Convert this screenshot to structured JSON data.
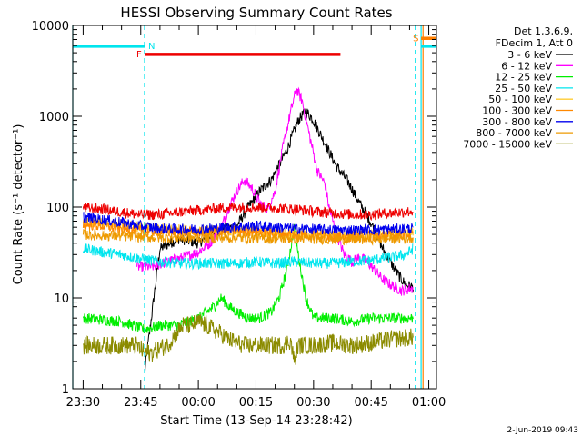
{
  "chart_data": {
    "type": "line",
    "title": "HESSI Observing Summary Count Rates",
    "ylabel": "Count Rate (s⁻¹ detector⁻¹)",
    "xlabel": "Start Time (13-Sep-14 23:28:42)",
    "footer": "2-Jun-2019 09:43",
    "y_scale": "log",
    "ylim": [
      1,
      10000
    ],
    "xlim_minutes": [
      -2.7,
      92
    ],
    "y_ticks": [
      1,
      10,
      100,
      1000,
      10000
    ],
    "y_tick_labels": [
      "1",
      "10",
      "100",
      "1000",
      "10000"
    ],
    "x_ticks_minutes": [
      0,
      15,
      30,
      45,
      60,
      75,
      90
    ],
    "x_tick_labels": [
      "23:30",
      "23:45",
      "00:00",
      "00:15",
      "00:30",
      "00:45",
      "01:00"
    ],
    "legend_header": [
      "Det 1,3,6,9,",
      "FDecim 1, Att 0"
    ],
    "legend_position": "right",
    "series": [
      {
        "name": "3 - 6 keV",
        "color": "#000000",
        "points": [
          [
            16,
            1.5
          ],
          [
            20,
            35
          ],
          [
            25,
            45
          ],
          [
            30,
            40
          ],
          [
            35,
            55
          ],
          [
            40,
            62
          ],
          [
            43,
            100
          ],
          [
            46,
            150
          ],
          [
            49,
            200
          ],
          [
            53,
            420
          ],
          [
            56,
            900
          ],
          [
            58,
            1150
          ],
          [
            60,
            900
          ],
          [
            63,
            500
          ],
          [
            66,
            280
          ],
          [
            69,
            190
          ],
          [
            72,
            110
          ],
          [
            74,
            80
          ],
          [
            76,
            55
          ],
          [
            78,
            35
          ],
          [
            80,
            25
          ],
          [
            82,
            18
          ],
          [
            84,
            14
          ],
          [
            86,
            13
          ]
        ]
      },
      {
        "name": "6 - 12 keV",
        "color": "#ff00ff",
        "points": [
          [
            14,
            22
          ],
          [
            18,
            22
          ],
          [
            22,
            25
          ],
          [
            26,
            28
          ],
          [
            30,
            32
          ],
          [
            33,
            40
          ],
          [
            36,
            60
          ],
          [
            38,
            100
          ],
          [
            40,
            150
          ],
          [
            42,
            200
          ],
          [
            44,
            160
          ],
          [
            46,
            110
          ],
          [
            48,
            95
          ],
          [
            50,
            150
          ],
          [
            52,
            450
          ],
          [
            54,
            1100
          ],
          [
            55.5,
            2000
          ],
          [
            57,
            1500
          ],
          [
            59,
            600
          ],
          [
            61,
            250
          ],
          [
            63,
            180
          ],
          [
            64,
            100
          ],
          [
            66,
            50
          ],
          [
            68,
            30
          ],
          [
            70,
            25
          ],
          [
            72,
            28
          ],
          [
            74,
            25
          ],
          [
            76,
            20
          ],
          [
            78,
            16
          ],
          [
            80,
            14
          ],
          [
            83,
            12
          ],
          [
            86,
            13
          ]
        ]
      },
      {
        "name": "12 - 25 keV",
        "color": "#00ee00",
        "points": [
          [
            0,
            6
          ],
          [
            10,
            5.5
          ],
          [
            16,
            4.5
          ],
          [
            20,
            5
          ],
          [
            25,
            5
          ],
          [
            30,
            6
          ],
          [
            34,
            8
          ],
          [
            36,
            10
          ],
          [
            38,
            8
          ],
          [
            40,
            7
          ],
          [
            43,
            6
          ],
          [
            46,
            6
          ],
          [
            49,
            7
          ],
          [
            51,
            10
          ],
          [
            53,
            20
          ],
          [
            55,
            60
          ],
          [
            56,
            30
          ],
          [
            58,
            10
          ],
          [
            60,
            6
          ],
          [
            65,
            6
          ],
          [
            70,
            5.5
          ],
          [
            75,
            6
          ],
          [
            80,
            6
          ],
          [
            86,
            6
          ]
        ]
      },
      {
        "name": "25 - 50 keV",
        "color": "#00e5ee",
        "points": [
          [
            0,
            35
          ],
          [
            5,
            32
          ],
          [
            10,
            30
          ],
          [
            15,
            27
          ],
          [
            20,
            25
          ],
          [
            25,
            24
          ],
          [
            30,
            24
          ],
          [
            35,
            24
          ],
          [
            40,
            24
          ],
          [
            45,
            25
          ],
          [
            50,
            24
          ],
          [
            55,
            25
          ],
          [
            60,
            24
          ],
          [
            65,
            24
          ],
          [
            70,
            25
          ],
          [
            75,
            26
          ],
          [
            80,
            28
          ],
          [
            84,
            30
          ],
          [
            86,
            35
          ]
        ]
      },
      {
        "name": "50 - 100 keV",
        "color": "#ffcc33",
        "points": [
          [
            0,
            70
          ],
          [
            10,
            63
          ],
          [
            20,
            58
          ],
          [
            30,
            55
          ],
          [
            40,
            55
          ],
          [
            50,
            52
          ],
          [
            60,
            50
          ],
          [
            70,
            49
          ],
          [
            80,
            50
          ],
          [
            86,
            52
          ]
        ]
      },
      {
        "name": "100 - 300 keV",
        "color": "#ff8800",
        "points": [
          [
            0,
            65
          ],
          [
            5,
            62
          ],
          [
            10,
            58
          ],
          [
            15,
            55
          ],
          [
            20,
            54
          ],
          [
            25,
            53
          ],
          [
            30,
            53
          ],
          [
            35,
            54
          ],
          [
            40,
            55
          ],
          [
            45,
            54
          ],
          [
            50,
            52
          ],
          [
            55,
            50
          ],
          [
            60,
            49
          ],
          [
            65,
            48
          ],
          [
            70,
            47
          ],
          [
            75,
            48
          ],
          [
            80,
            49
          ],
          [
            86,
            50
          ]
        ]
      },
      {
        "name": "300 - 800 keV",
        "color": "#0000ee",
        "points": [
          [
            0,
            78
          ],
          [
            5,
            73
          ],
          [
            10,
            68
          ],
          [
            15,
            62
          ],
          [
            20,
            58
          ],
          [
            25,
            57
          ],
          [
            30,
            57
          ],
          [
            35,
            59
          ],
          [
            40,
            61
          ],
          [
            45,
            62
          ],
          [
            50,
            60
          ],
          [
            55,
            58
          ],
          [
            60,
            57
          ],
          [
            65,
            56
          ],
          [
            70,
            56
          ],
          [
            75,
            56
          ],
          [
            80,
            57
          ],
          [
            86,
            58
          ]
        ]
      },
      {
        "name": "800 - 7000 keV",
        "color": "#ee9a00",
        "points": [
          [
            0,
            50
          ],
          [
            10,
            48
          ],
          [
            20,
            46
          ],
          [
            30,
            46
          ],
          [
            40,
            46
          ],
          [
            50,
            45
          ],
          [
            60,
            45
          ],
          [
            70,
            44
          ],
          [
            80,
            45
          ],
          [
            86,
            46
          ]
        ]
      },
      {
        "name": "7000 - 15000 keV",
        "color": "#8b8b00",
        "points": [
          [
            0,
            3
          ],
          [
            5,
            3
          ],
          [
            10,
            3
          ],
          [
            14,
            3
          ],
          [
            16,
            2.5
          ],
          [
            18,
            2.5
          ],
          [
            20,
            2.8
          ],
          [
            22,
            3
          ],
          [
            24,
            4
          ],
          [
            26,
            5
          ],
          [
            28,
            5
          ],
          [
            30,
            5.5
          ],
          [
            32,
            5
          ],
          [
            34,
            4.5
          ],
          [
            36,
            4
          ],
          [
            38,
            3.5
          ],
          [
            40,
            3.2
          ],
          [
            42,
            3
          ],
          [
            44,
            3
          ],
          [
            46,
            3
          ],
          [
            50,
            3
          ],
          [
            52,
            3
          ],
          [
            54,
            3.4
          ],
          [
            55,
            2
          ],
          [
            56,
            3
          ],
          [
            60,
            3
          ],
          [
            65,
            3.2
          ],
          [
            70,
            3
          ],
          [
            75,
            3.2
          ],
          [
            80,
            3.5
          ],
          [
            86,
            3.7
          ]
        ]
      },
      {
        "name": "",
        "color": "#ee0000",
        "points": [
          [
            0,
            98
          ],
          [
            5,
            95
          ],
          [
            10,
            88
          ],
          [
            15,
            82
          ],
          [
            20,
            83
          ],
          [
            25,
            88
          ],
          [
            30,
            92
          ],
          [
            35,
            97
          ],
          [
            40,
            100
          ],
          [
            45,
            100
          ],
          [
            50,
            98
          ],
          [
            55,
            95
          ],
          [
            60,
            90
          ],
          [
            65,
            86
          ],
          [
            70,
            83
          ],
          [
            75,
            83
          ],
          [
            80,
            86
          ],
          [
            86,
            90
          ]
        ]
      }
    ],
    "annotations": [
      {
        "label": "N",
        "color": "#00e5ee",
        "kind": "bar_end",
        "x_start": -2.7,
        "x_end": 16,
        "y": 5900
      },
      {
        "label": "F",
        "color": "#ee0000",
        "kind": "bar_start",
        "x_start": 16,
        "x_end": 67,
        "y": 4800
      },
      {
        "label": "S",
        "color": "#ff7f00",
        "kind": "bar_start",
        "x_start": 88,
        "x_end": 92,
        "y": 7200
      }
    ],
    "extra_bars": [
      {
        "color": "#00e5ee",
        "x_start": 88,
        "x_end": 92,
        "y": 5900
      }
    ],
    "vertical_lines": [
      {
        "x": -2.7,
        "color": "#00e5ee",
        "style": "solid"
      },
      {
        "x": 16,
        "color": "#00e5ee",
        "style": "dashed"
      },
      {
        "x": 86.5,
        "color": "#00e5ee",
        "style": "dashed"
      },
      {
        "x": 88,
        "color": "#00e5ee",
        "style": "solid"
      },
      {
        "x": 88.5,
        "color": "#ff7f00",
        "style": "solid"
      }
    ]
  }
}
